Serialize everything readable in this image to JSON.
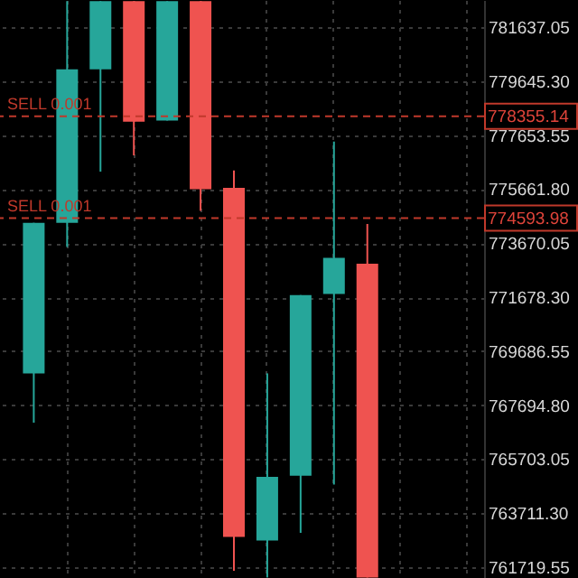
{
  "chart_data": {
    "type": "candlestick",
    "categories": [
      null,
      null,
      null,
      null,
      null,
      null,
      null,
      null,
      null,
      null,
      null,
      null,
      null,
      null,
      null
    ],
    "ohlc": [
      null,
      [
        768868,
        774423,
        767049,
        774423
      ],
      [
        774423,
        782600,
        773530,
        780085
      ],
      [
        780085,
        782600,
        776308,
        782600
      ],
      [
        782600,
        782600,
        776908,
        778153
      ],
      [
        778193,
        782600,
        778193,
        782600
      ],
      [
        782600,
        782600,
        774863,
        775662
      ],
      [
        775709,
        776355,
        761587,
        762833
      ],
      [
        762700,
        768868,
        761340,
        765051
      ],
      [
        765095,
        771759,
        762986,
        771759
      ],
      [
        771799,
        777421,
        764765,
        773131
      ],
      [
        772911,
        774377,
        761340,
        761340
      ],
      null,
      null,
      null
    ],
    "colors": [
      null,
      "#26a69a",
      "#26a69a",
      "#26a69a",
      "#ef5350",
      "#26a69a",
      "#ef5350",
      "#ef5350",
      "#26a69a",
      "#26a69a",
      "#26a69a",
      "#ef5350",
      null,
      null,
      null
    ],
    "ylim": [
      761320,
      782640
    ],
    "yticks": [
      761719.55,
      {
        "value": 763711.3,
        "label": "763711.30"
      },
      765703.05,
      {
        "value": 767694.8,
        "label": "767694.80"
      },
      769686.55,
      {
        "value": 771678.3,
        "label": "771678.30"
      },
      773670.05,
      {
        "value": 775661.8,
        "label": "775661.80"
      },
      777653.55,
      {
        "value": 779645.3,
        "label": "779645.30"
      },
      781637.05
    ],
    "grid": true,
    "tick_labels": "y",
    "ref_lines": [
      {
        "axis": "y",
        "value": 778355.14,
        "label": "SELL 0.001",
        "color": "#c0392b",
        "line_style": "dashed"
      },
      {
        "axis": "y",
        "value": 774593.98,
        "label": "SELL 0.001",
        "color": "#c0392b",
        "line_style": "dashed"
      }
    ],
    "annotations": [
      "778355.14",
      "774593.98"
    ]
  }
}
